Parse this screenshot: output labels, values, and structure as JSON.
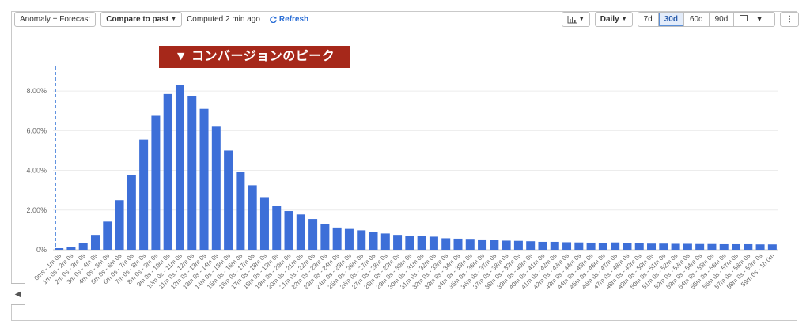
{
  "toolbar": {
    "anomaly_label": "Anomaly + Forecast",
    "compare_label": "Compare to past",
    "computed_text": "Computed 2 min ago",
    "refresh_label": "Refresh",
    "interval_label": "Daily",
    "ranges": [
      "7d",
      "30d",
      "60d",
      "90d"
    ],
    "active_range": "30d"
  },
  "banner": {
    "text": "▼ コンバージョンのピーク",
    "color": "#a6281a"
  },
  "chart_data": {
    "type": "bar",
    "color": "#3d6fd8",
    "ylim": [
      0,
      9
    ],
    "yticks": [
      "0%",
      "2.00%",
      "4.00%",
      "6.00%",
      "8.00%"
    ],
    "ytick_values": [
      0,
      2,
      4,
      6,
      8
    ],
    "grid": true,
    "categories": [
      "0ms - 1m 0s",
      "1m 0s - 2m 0s",
      "2m 0s - 3m 0s",
      "3m 0s - 4m 0s",
      "4m 0s - 5m 0s",
      "5m 0s - 6m 0s",
      "6m 0s - 7m 0s",
      "7m 0s - 8m 0s",
      "8m 0s - 9m 0s",
      "9m 0s - 10m 0s",
      "10m 0s - 11m 0s",
      "11m 0s - 12m 0s",
      "12m 0s - 13m 0s",
      "13m 0s - 14m 0s",
      "14m 0s - 15m 0s",
      "15m 0s - 16m 0s",
      "16m 0s - 17m 0s",
      "17m 0s - 18m 0s",
      "18m 0s - 19m 0s",
      "19m 0s - 20m 0s",
      "20m 0s - 21m 0s",
      "21m 0s - 22m 0s",
      "22m 0s - 23m 0s",
      "23m 0s - 24m 0s",
      "24m 0s - 25m 0s",
      "25m 0s - 26m 0s",
      "26m 0s - 27m 0s",
      "27m 0s - 28m 0s",
      "28m 0s - 29m 0s",
      "29m 0s - 30m 0s",
      "30m 0s - 31m 0s",
      "31m 0s - 32m 0s",
      "32m 0s - 33m 0s",
      "33m 0s - 34m 0s",
      "34m 0s - 35m 0s",
      "35m 0s - 36m 0s",
      "36m 0s - 37m 0s",
      "37m 0s - 38m 0s",
      "38m 0s - 39m 0s",
      "39m 0s - 40m 0s",
      "40m 0s - 41m 0s",
      "41m 0s - 42m 0s",
      "42m 0s - 43m 0s",
      "43m 0s - 44m 0s",
      "44m 0s - 45m 0s",
      "45m 0s - 46m 0s",
      "46m 0s - 47m 0s",
      "47m 0s - 48m 0s",
      "48m 0s - 49m 0s",
      "49m 0s - 50m 0s",
      "50m 0s - 51m 0s",
      "51m 0s - 52m 0s",
      "52m 0s - 53m 0s",
      "53m 0s - 54m 0s",
      "54m 0s - 55m 0s",
      "55m 0s - 56m 0s",
      "56m 0s - 57m 0s",
      "57m 0s - 58m 0s",
      "58m 0s - 59m 0s",
      "59m 0s - 1h 0m"
    ],
    "values": [
      0.08,
      0.12,
      0.33,
      0.75,
      1.42,
      2.5,
      3.75,
      5.55,
      6.75,
      7.85,
      8.3,
      7.75,
      7.1,
      6.2,
      5.0,
      3.92,
      3.25,
      2.65,
      2.2,
      1.95,
      1.78,
      1.55,
      1.3,
      1.12,
      1.05,
      0.98,
      0.9,
      0.82,
      0.75,
      0.7,
      0.68,
      0.66,
      0.58,
      0.56,
      0.55,
      0.52,
      0.48,
      0.46,
      0.45,
      0.43,
      0.4,
      0.4,
      0.38,
      0.37,
      0.36,
      0.35,
      0.37,
      0.33,
      0.32,
      0.31,
      0.31,
      0.3,
      0.3,
      0.29,
      0.29,
      0.28,
      0.28,
      0.28,
      0.27,
      0.27
    ],
    "marker_line_color": "#2a6ed6"
  }
}
